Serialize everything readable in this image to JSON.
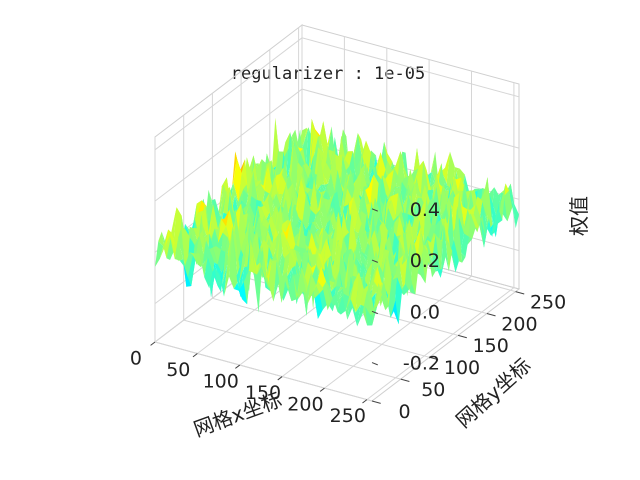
{
  "chart_data": {
    "type": "surface",
    "title": "regularizer : 1e-05",
    "xlabel": "网格x坐标",
    "ylabel": "网格y坐标",
    "zlabel": "权值",
    "x_ticks": [
      "0",
      "50",
      "100",
      "150",
      "200",
      "250"
    ],
    "y_ticks": [
      "0",
      "50",
      "100",
      "150",
      "200",
      "250"
    ],
    "z_ticks": [
      "-0.2",
      "0.0",
      "0.2",
      "0.4"
    ],
    "x_range": [
      0,
      256
    ],
    "y_range": [
      0,
      256
    ],
    "z_range": [
      -0.35,
      0.45
    ],
    "colormap": "jet",
    "grid": true,
    "surface_description_values": {
      "mean": 0.0,
      "typical_min": -0.3,
      "typical_max": 0.3
    }
  }
}
